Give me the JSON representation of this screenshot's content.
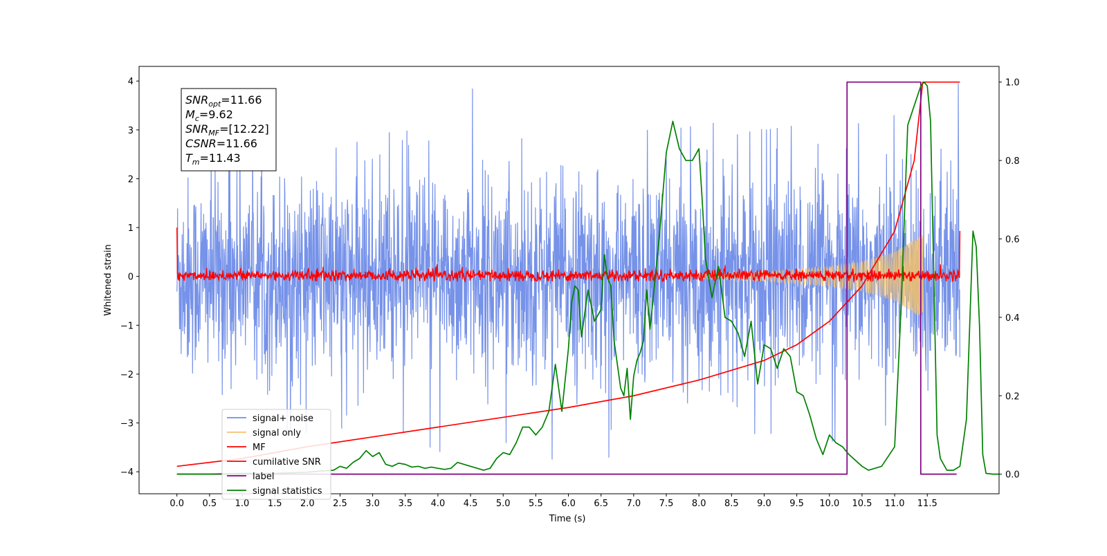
{
  "chart_data": {
    "type": "line",
    "xlabel": "Time (s)",
    "ylabel": "Whitened strain",
    "xlim": [
      -0.58,
      12.6
    ],
    "ylim_left": [
      -4.45,
      4.3
    ],
    "ylim_right": [
      -0.05,
      1.04
    ],
    "xticks": [
      "0.0",
      "0.5",
      "1.0",
      "1.5",
      "2.0",
      "2.5",
      "3.0",
      "3.5",
      "4.0",
      "4.5",
      "5.0",
      "5.5",
      "6.0",
      "6.5",
      "7.0",
      "7.5",
      "8.0",
      "8.5",
      "9.0",
      "9.5",
      "10.0",
      "10.5",
      "11.0",
      "11.5"
    ],
    "yticks_left": [
      "4",
      "3",
      "2",
      "1",
      "0",
      "−1",
      "−2",
      "−3",
      "−4"
    ],
    "yticks_right": [
      "1.0",
      "0.8",
      "0.6",
      "0.4",
      "0.2",
      "0.0"
    ],
    "annotation": [
      {
        "sym": "SNR",
        "sub": "opt",
        "val": "=11.66"
      },
      {
        "sym": "M",
        "sub": "c",
        "val": "=9.62"
      },
      {
        "sym": "SNR",
        "sub": "MF",
        "val": "=[12.22]"
      },
      {
        "sym": "CSNR",
        "sub": "",
        "val": "=11.66"
      },
      {
        "sym": "T",
        "sub": "m",
        "val": "=11.43"
      }
    ],
    "legend_position": "lower-left",
    "series": [
      {
        "name": "signal+ noise",
        "color": "#6f8ce8",
        "axis": "left",
        "x_range": [
          0.0,
          12.0
        ],
        "std": 1.0,
        "y_envelope_max": [
          [
            0.0,
            2.9
          ],
          [
            0.5,
            2.7
          ],
          [
            1.0,
            3.0
          ],
          [
            1.5,
            2.8
          ],
          [
            2.0,
            2.9
          ],
          [
            2.5,
            2.6
          ],
          [
            3.0,
            2.9
          ],
          [
            3.5,
            3.0
          ],
          [
            4.0,
            2.7
          ],
          [
            4.5,
            3.9
          ],
          [
            5.0,
            3.0
          ],
          [
            5.5,
            2.7
          ],
          [
            6.0,
            3.0
          ],
          [
            6.5,
            3.4
          ],
          [
            7.0,
            3.0
          ],
          [
            7.5,
            3.0
          ],
          [
            8.0,
            3.1
          ],
          [
            8.5,
            3.2
          ],
          [
            9.0,
            3.0
          ],
          [
            9.5,
            3.1
          ],
          [
            10.0,
            3.2
          ],
          [
            10.5,
            3.4
          ],
          [
            11.0,
            3.3
          ],
          [
            11.5,
            3.3
          ],
          [
            11.95,
            3.95
          ]
        ],
        "y_envelope_min": [
          [
            0.0,
            -3.2
          ],
          [
            0.5,
            -2.9
          ],
          [
            1.0,
            -3.0
          ],
          [
            1.5,
            -3.3
          ],
          [
            2.0,
            -3.2
          ],
          [
            2.5,
            -3.1
          ],
          [
            3.0,
            -3.4
          ],
          [
            3.5,
            -3.2
          ],
          [
            4.0,
            -3.6
          ],
          [
            4.5,
            -3.5
          ],
          [
            5.0,
            -3.4
          ],
          [
            5.5,
            -3.5
          ],
          [
            6.0,
            -4.0
          ],
          [
            6.5,
            -3.5
          ],
          [
            6.9,
            -4.2
          ],
          [
            7.5,
            -3.3
          ],
          [
            8.0,
            -3.5
          ],
          [
            8.5,
            -3.3
          ],
          [
            9.0,
            -3.2
          ],
          [
            9.5,
            -3.3
          ],
          [
            10.0,
            -3.4
          ],
          [
            10.5,
            -3.2
          ],
          [
            11.0,
            -3.0
          ],
          [
            11.5,
            -3.2
          ],
          [
            11.95,
            -3.2
          ]
        ]
      },
      {
        "name": "signal only",
        "color": "#f5c26b",
        "axis": "left",
        "chirp_start": 8.0,
        "chirp_end": 11.43,
        "amp_envelope": [
          [
            8.0,
            0.05
          ],
          [
            9.0,
            0.1
          ],
          [
            10.0,
            0.2
          ],
          [
            10.5,
            0.3
          ],
          [
            11.0,
            0.5
          ],
          [
            11.3,
            0.75
          ],
          [
            11.43,
            0.85
          ]
        ]
      },
      {
        "name": "MF",
        "color": "#ff0000",
        "axis": "left",
        "x_range": [
          0.0,
          12.0
        ],
        "y_start": 1.0,
        "noise_band": [
          -0.1,
          0.3
        ],
        "y_end": 0.93
      },
      {
        "name": "cumilative SNR",
        "color": "#ff0000",
        "axis": "right",
        "points": [
          [
            0.0,
            0.02
          ],
          [
            1.0,
            0.04
          ],
          [
            2.0,
            0.07
          ],
          [
            3.0,
            0.095
          ],
          [
            4.0,
            0.12
          ],
          [
            5.0,
            0.145
          ],
          [
            6.0,
            0.17
          ],
          [
            7.0,
            0.2
          ],
          [
            8.0,
            0.24
          ],
          [
            9.0,
            0.29
          ],
          [
            9.5,
            0.33
          ],
          [
            10.0,
            0.39
          ],
          [
            10.5,
            0.48
          ],
          [
            11.0,
            0.62
          ],
          [
            11.3,
            0.8
          ],
          [
            11.43,
            1.0
          ],
          [
            12.0,
            1.0
          ]
        ]
      },
      {
        "name": "label",
        "color": "#800080",
        "axis": "right",
        "points": [
          [
            0.0,
            0.0
          ],
          [
            10.27,
            0.0
          ],
          [
            10.27,
            1.0
          ],
          [
            11.4,
            1.0
          ],
          [
            11.4,
            0.0
          ],
          [
            11.95,
            0.0
          ]
        ]
      },
      {
        "name": "signal statistics",
        "color": "#008000",
        "axis": "right",
        "points": [
          [
            0.0,
            0.0
          ],
          [
            0.5,
            0.0
          ],
          [
            1.0,
            0.002
          ],
          [
            1.5,
            0.002
          ],
          [
            2.0,
            0.005
          ],
          [
            2.2,
            0.008
          ],
          [
            2.4,
            0.01
          ],
          [
            2.5,
            0.02
          ],
          [
            2.6,
            0.015
          ],
          [
            2.7,
            0.03
          ],
          [
            2.8,
            0.04
          ],
          [
            2.9,
            0.06
          ],
          [
            3.0,
            0.045
          ],
          [
            3.1,
            0.055
          ],
          [
            3.2,
            0.025
          ],
          [
            3.3,
            0.02
          ],
          [
            3.4,
            0.028
          ],
          [
            3.5,
            0.025
          ],
          [
            3.6,
            0.018
          ],
          [
            3.7,
            0.02
          ],
          [
            3.8,
            0.015
          ],
          [
            3.9,
            0.018
          ],
          [
            4.0,
            0.015
          ],
          [
            4.1,
            0.012
          ],
          [
            4.2,
            0.015
          ],
          [
            4.3,
            0.03
          ],
          [
            4.5,
            0.02
          ],
          [
            4.7,
            0.01
          ],
          [
            4.8,
            0.015
          ],
          [
            4.9,
            0.04
          ],
          [
            5.0,
            0.055
          ],
          [
            5.1,
            0.05
          ],
          [
            5.2,
            0.08
          ],
          [
            5.3,
            0.12
          ],
          [
            5.4,
            0.12
          ],
          [
            5.5,
            0.1
          ],
          [
            5.6,
            0.12
          ],
          [
            5.7,
            0.16
          ],
          [
            5.8,
            0.28
          ],
          [
            5.9,
            0.16
          ],
          [
            6.0,
            0.32
          ],
          [
            6.05,
            0.44
          ],
          [
            6.1,
            0.48
          ],
          [
            6.15,
            0.47
          ],
          [
            6.2,
            0.35
          ],
          [
            6.3,
            0.47
          ],
          [
            6.4,
            0.39
          ],
          [
            6.5,
            0.42
          ],
          [
            6.55,
            0.56
          ],
          [
            6.6,
            0.5
          ],
          [
            6.65,
            0.48
          ],
          [
            6.7,
            0.34
          ],
          [
            6.8,
            0.22
          ],
          [
            6.85,
            0.2
          ],
          [
            6.9,
            0.27
          ],
          [
            6.95,
            0.14
          ],
          [
            7.0,
            0.25
          ],
          [
            7.05,
            0.29
          ],
          [
            7.1,
            0.31
          ],
          [
            7.15,
            0.34
          ],
          [
            7.2,
            0.47
          ],
          [
            7.25,
            0.37
          ],
          [
            7.3,
            0.45
          ],
          [
            7.4,
            0.62
          ],
          [
            7.5,
            0.82
          ],
          [
            7.6,
            0.9
          ],
          [
            7.7,
            0.83
          ],
          [
            7.8,
            0.8
          ],
          [
            7.9,
            0.8
          ],
          [
            8.0,
            0.83
          ],
          [
            8.05,
            0.7
          ],
          [
            8.1,
            0.55
          ],
          [
            8.2,
            0.45
          ],
          [
            8.3,
            0.53
          ],
          [
            8.4,
            0.4
          ],
          [
            8.5,
            0.39
          ],
          [
            8.6,
            0.36
          ],
          [
            8.7,
            0.3
          ],
          [
            8.8,
            0.39
          ],
          [
            8.9,
            0.23
          ],
          [
            9.0,
            0.33
          ],
          [
            9.1,
            0.32
          ],
          [
            9.2,
            0.27
          ],
          [
            9.3,
            0.32
          ],
          [
            9.4,
            0.3
          ],
          [
            9.5,
            0.21
          ],
          [
            9.6,
            0.2
          ],
          [
            9.7,
            0.15
          ],
          [
            9.8,
            0.09
          ],
          [
            9.9,
            0.05
          ],
          [
            10.0,
            0.1
          ],
          [
            10.1,
            0.08
          ],
          [
            10.2,
            0.07
          ],
          [
            10.3,
            0.05
          ],
          [
            10.5,
            0.02
          ],
          [
            10.6,
            0.01
          ],
          [
            10.8,
            0.02
          ],
          [
            11.0,
            0.07
          ],
          [
            11.1,
            0.43
          ],
          [
            11.2,
            0.89
          ],
          [
            11.3,
            0.94
          ],
          [
            11.4,
            0.99
          ],
          [
            11.45,
            1.0
          ],
          [
            11.5,
            0.99
          ],
          [
            11.55,
            0.9
          ],
          [
            11.6,
            0.5
          ],
          [
            11.65,
            0.1
          ],
          [
            11.7,
            0.04
          ],
          [
            11.8,
            0.01
          ],
          [
            11.9,
            0.01
          ],
          [
            12.0,
            0.02
          ],
          [
            12.1,
            0.14
          ],
          [
            12.2,
            0.62
          ],
          [
            12.25,
            0.58
          ],
          [
            12.3,
            0.38
          ],
          [
            12.35,
            0.05
          ],
          [
            12.4,
            0.002
          ],
          [
            12.5,
            0.0
          ],
          [
            12.6,
            0.0
          ]
        ]
      }
    ]
  }
}
